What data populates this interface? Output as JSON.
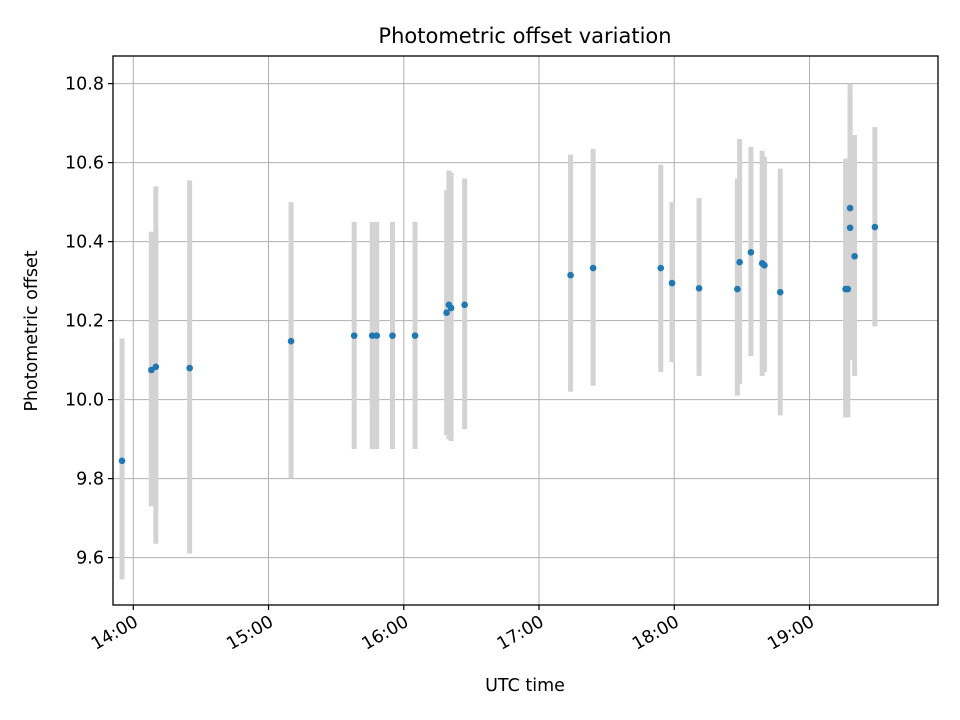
{
  "chart_data": {
    "type": "scatter",
    "title": "Photometric offset variation",
    "xlabel": "UTC time",
    "ylabel": "Photometric offset",
    "x_format": "HH:MM",
    "xlim": [
      "13:51",
      "19:57"
    ],
    "ylim": [
      9.48,
      10.87
    ],
    "xticks": [
      "14:00",
      "15:00",
      "16:00",
      "17:00",
      "18:00",
      "19:00"
    ],
    "yticks": [
      9.6,
      9.8,
      10.0,
      10.2,
      10.4,
      10.6,
      10.8
    ],
    "grid": true,
    "marker_color": "#1f77b4",
    "errorbar_color": "#d3d3d3",
    "series": [
      {
        "points": [
          {
            "x": "13:55",
            "y": 9.845,
            "ylow": 9.545,
            "yhigh": 10.155
          },
          {
            "x": "14:08",
            "y": 10.075,
            "ylow": 9.73,
            "yhigh": 10.425
          },
          {
            "x": "14:10",
            "y": 10.083,
            "ylow": 9.635,
            "yhigh": 10.54
          },
          {
            "x": "14:25",
            "y": 10.08,
            "ylow": 9.61,
            "yhigh": 10.555
          },
          {
            "x": "15:10",
            "y": 10.148,
            "ylow": 9.8,
            "yhigh": 10.5
          },
          {
            "x": "15:38",
            "y": 10.162,
            "ylow": 9.875,
            "yhigh": 10.45
          },
          {
            "x": "15:46",
            "y": 10.162,
            "ylow": 9.875,
            "yhigh": 10.45
          },
          {
            "x": "15:48",
            "y": 10.162,
            "ylow": 9.875,
            "yhigh": 10.45
          },
          {
            "x": "15:55",
            "y": 10.162,
            "ylow": 9.875,
            "yhigh": 10.45
          },
          {
            "x": "16:05",
            "y": 10.162,
            "ylow": 9.875,
            "yhigh": 10.45
          },
          {
            "x": "16:19",
            "y": 10.22,
            "ylow": 9.91,
            "yhigh": 10.53
          },
          {
            "x": "16:20",
            "y": 10.24,
            "ylow": 9.9,
            "yhigh": 10.58
          },
          {
            "x": "16:21",
            "y": 10.232,
            "ylow": 9.895,
            "yhigh": 10.575
          },
          {
            "x": "16:27",
            "y": 10.24,
            "ylow": 9.925,
            "yhigh": 10.56
          },
          {
            "x": "17:14",
            "y": 10.315,
            "ylow": 10.02,
            "yhigh": 10.62
          },
          {
            "x": "17:24",
            "y": 10.333,
            "ylow": 10.035,
            "yhigh": 10.635
          },
          {
            "x": "17:54",
            "y": 10.333,
            "ylow": 10.07,
            "yhigh": 10.595
          },
          {
            "x": "17:59",
            "y": 10.295,
            "ylow": 10.095,
            "yhigh": 10.5
          },
          {
            "x": "18:11",
            "y": 10.282,
            "ylow": 10.06,
            "yhigh": 10.51
          },
          {
            "x": "18:28",
            "y": 10.28,
            "ylow": 10.01,
            "yhigh": 10.56
          },
          {
            "x": "18:29",
            "y": 10.348,
            "ylow": 10.04,
            "yhigh": 10.66
          },
          {
            "x": "18:34",
            "y": 10.373,
            "ylow": 10.11,
            "yhigh": 10.64
          },
          {
            "x": "18:39",
            "y": 10.345,
            "ylow": 10.06,
            "yhigh": 10.63
          },
          {
            "x": "18:40",
            "y": 10.34,
            "ylow": 10.07,
            "yhigh": 10.615
          },
          {
            "x": "18:47",
            "y": 10.272,
            "ylow": 9.96,
            "yhigh": 10.585
          },
          {
            "x": "19:16",
            "y": 10.28,
            "ylow": 9.955,
            "yhigh": 10.61
          },
          {
            "x": "19:17",
            "y": 10.28,
            "ylow": 9.955,
            "yhigh": 10.61
          },
          {
            "x": "19:18",
            "y": 10.485,
            "ylow": 10.16,
            "yhigh": 10.8
          },
          {
            "x": "19:18",
            "y": 10.435,
            "ylow": 10.1,
            "yhigh": 10.77
          },
          {
            "x": "19:20",
            "y": 10.363,
            "ylow": 10.06,
            "yhigh": 10.67
          },
          {
            "x": "19:29",
            "y": 10.437,
            "ylow": 10.185,
            "yhigh": 10.69
          }
        ]
      }
    ]
  }
}
